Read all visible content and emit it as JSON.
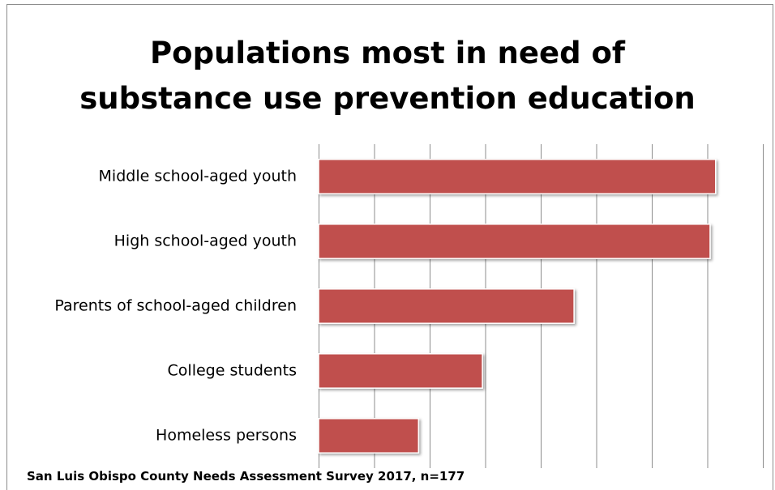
{
  "chart_data": {
    "type": "bar",
    "orientation": "horizontal",
    "title_lines": [
      "Populations most in need of",
      "substance use prevention education"
    ],
    "categories": [
      "Middle school-aged youth",
      "High school-aged youth",
      "Parents of school-aged children",
      "College students",
      "Homeless persons"
    ],
    "values": [
      71.5,
      70.5,
      46,
      29.5,
      18
    ],
    "xlim": [
      0,
      80
    ],
    "x_grid_step": 10,
    "grid": true,
    "show_x_tick_labels": false,
    "bar_color": "#c0504d",
    "footer": "San Luis Obispo County Needs Assessment Survey 2017, n=177"
  }
}
